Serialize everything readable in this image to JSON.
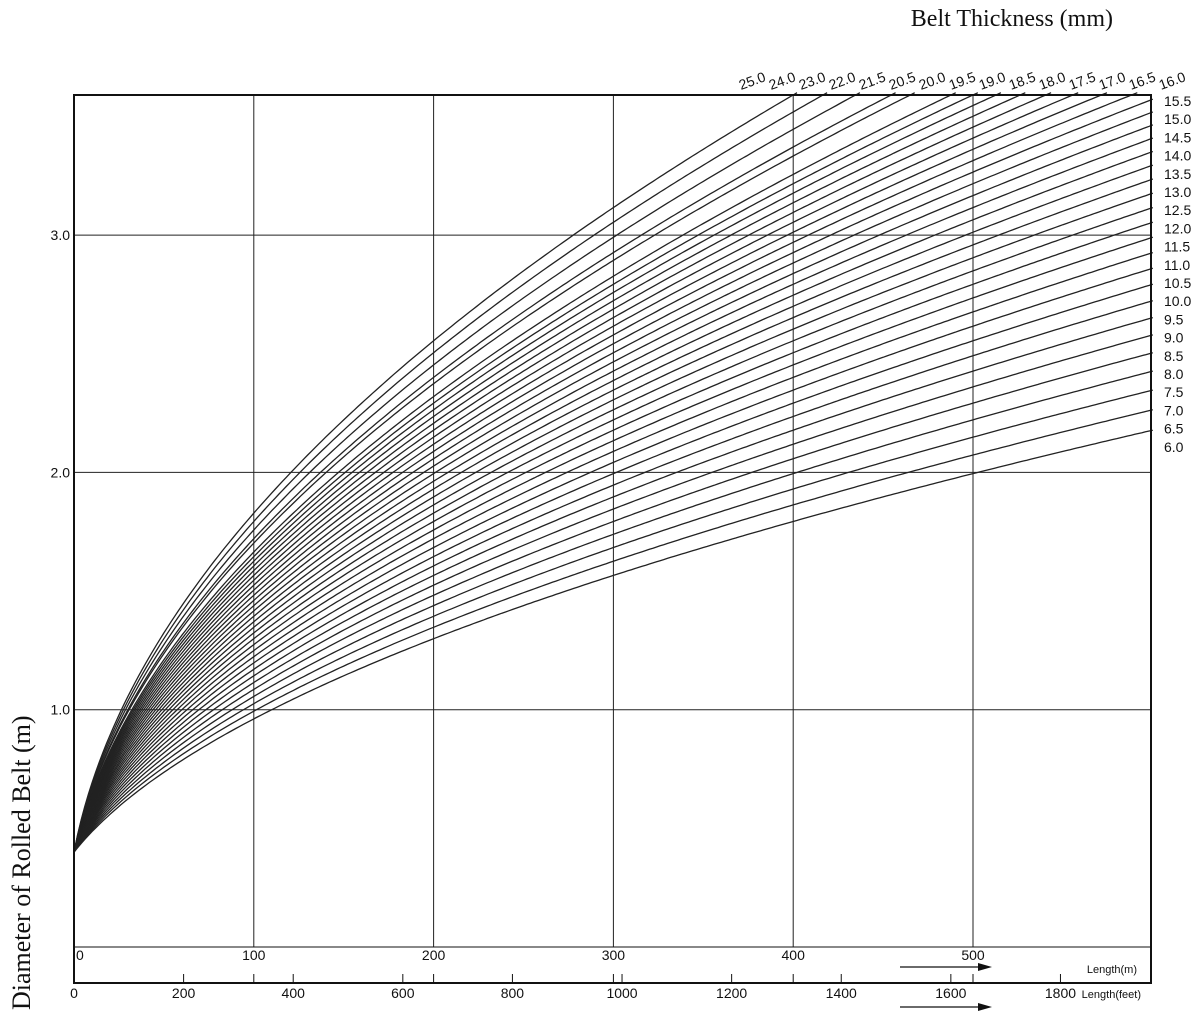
{
  "chart_data": {
    "type": "line",
    "title": "Belt Thickness (mm)",
    "xlabel": "Length(m)",
    "xlabel_secondary": "Length(feet)",
    "ylabel": "Diameter of Rolled Belt (m)",
    "xlim": [
      0,
      600
    ],
    "ylim": [
      0,
      3.6
    ],
    "x_ticks": [
      0,
      100,
      200,
      300,
      400,
      500
    ],
    "x_tick_labels": [
      "0",
      "100",
      "200",
      "300",
      "400",
      "500"
    ],
    "x_feet_ticks": [
      0,
      200,
      400,
      600,
      800,
      1000,
      1200,
      1400,
      1600,
      1800
    ],
    "x_feet_tick_labels": [
      "0",
      "200",
      "400",
      "600",
      "800",
      "1000",
      "1200",
      "1400",
      "1600",
      "1800"
    ],
    "y_ticks": [
      1.0,
      2.0,
      3.0
    ],
    "y_tick_labels": [
      "1.0",
      "2.0",
      "3.0"
    ],
    "grid": true,
    "core_diameter": 0.4,
    "series_top_labels": [
      "25.0",
      "24.0",
      "23.0",
      "22.0",
      "21.5",
      "20.5",
      "20.0",
      "19.5",
      "19.0",
      "18.5",
      "18.0",
      "17.5",
      "17.0",
      "16.5",
      "16.0"
    ],
    "series_right_labels": [
      "15.5",
      "15.0",
      "14.5",
      "14.0",
      "13.5",
      "13.0",
      "12.5",
      "12.0",
      "11.5",
      "11.0",
      "10.5",
      "10.0",
      "9.5",
      "9.0",
      "8.5",
      "8.0",
      "7.5",
      "7.0",
      "6.5",
      "6.0"
    ],
    "series_thickness_mm": [
      25.0,
      24.0,
      23.0,
      22.0,
      21.5,
      20.5,
      20.0,
      19.5,
      19.0,
      18.5,
      18.0,
      17.5,
      17.0,
      16.5,
      16.0,
      15.5,
      15.0,
      14.5,
      14.0,
      13.5,
      13.0,
      12.5,
      12.0,
      11.5,
      11.0,
      10.5,
      10.0,
      9.5,
      9.0,
      8.5,
      8.0,
      7.5,
      7.0,
      6.5,
      6.0
    ]
  }
}
